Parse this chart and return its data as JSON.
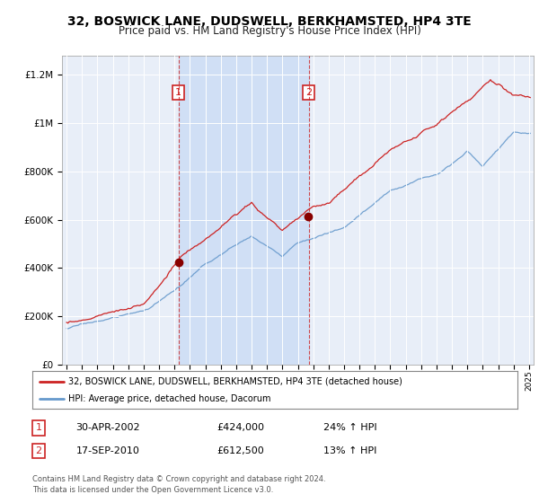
{
  "title": "32, BOSWICK LANE, DUDSWELL, BERKHAMSTED, HP4 3TE",
  "subtitle": "Price paid vs. HM Land Registry's House Price Index (HPI)",
  "legend_line1": "32, BOSWICK LANE, DUDSWELL, BERKHAMSTED, HP4 3TE (detached house)",
  "legend_line2": "HPI: Average price, detached house, Dacorum",
  "transaction1_date": "30-APR-2002",
  "transaction1_price": "£424,000",
  "transaction1_hpi": "24% ↑ HPI",
  "transaction2_date": "17-SEP-2010",
  "transaction2_price": "£612,500",
  "transaction2_hpi": "13% ↑ HPI",
  "footnote": "Contains HM Land Registry data © Crown copyright and database right 2024.\nThis data is licensed under the Open Government Licence v3.0.",
  "price_line_color": "#cc2222",
  "hpi_line_color": "#6699cc",
  "transaction1_x": 2002.25,
  "transaction2_x": 2010.7,
  "ylim_min": 0,
  "ylim_max": 1280000,
  "xlim_min": 1994.7,
  "xlim_max": 2025.3,
  "background_color": "#e8eef8",
  "shade_color": "#d0dff5",
  "grid_color": "#ffffff",
  "title_fontsize": 10,
  "subtitle_fontsize": 8.5
}
